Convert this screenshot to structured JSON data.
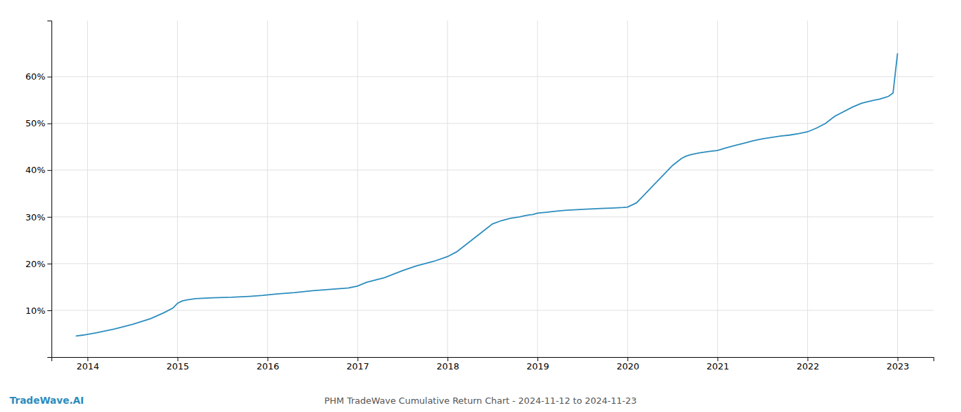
{
  "chart_data": {
    "type": "line",
    "title": "PHM TradeWave Cumulative Return Chart - 2024-11-12 to 2024-11-23",
    "annotations": [
      {
        "text": "TradeWave.AI",
        "color": "#2b8cbe"
      }
    ],
    "x": [
      2013.87,
      2013.95,
      2014.1,
      2014.3,
      2014.5,
      2014.7,
      2014.85,
      2014.95,
      2015.0,
      2015.05,
      2015.1,
      2015.2,
      2015.4,
      2015.6,
      2015.8,
      2015.95,
      2016.1,
      2016.3,
      2016.5,
      2016.7,
      2016.9,
      2017.0,
      2017.1,
      2017.3,
      2017.5,
      2017.65,
      2017.75,
      2017.85,
      2018.0,
      2018.1,
      2018.2,
      2018.3,
      2018.4,
      2018.5,
      2018.6,
      2018.7,
      2018.8,
      2018.85,
      2018.9,
      2018.95,
      2019.0,
      2019.1,
      2019.2,
      2019.3,
      2019.5,
      2019.7,
      2019.85,
      2019.95,
      2020.0,
      2020.1,
      2020.2,
      2020.3,
      2020.4,
      2020.5,
      2020.6,
      2020.65,
      2020.7,
      2020.75,
      2020.8,
      2020.9,
      2021.0,
      2021.1,
      2021.2,
      2021.3,
      2021.4,
      2021.5,
      2021.6,
      2021.7,
      2021.8,
      2021.9,
      2022.0,
      2022.1,
      2022.2,
      2022.3,
      2022.5,
      2022.6,
      2022.7,
      2022.8,
      2022.85,
      2022.9,
      2022.95,
      2023.0
    ],
    "values": [
      4.5,
      4.7,
      5.2,
      6.0,
      7.0,
      8.2,
      9.5,
      10.5,
      11.5,
      12.0,
      12.2,
      12.5,
      12.7,
      12.8,
      13.0,
      13.2,
      13.5,
      13.8,
      14.2,
      14.5,
      14.8,
      15.2,
      16.0,
      17.0,
      18.5,
      19.5,
      20.0,
      20.5,
      21.5,
      22.5,
      24.0,
      25.5,
      27.0,
      28.5,
      29.2,
      29.7,
      30.0,
      30.2,
      30.4,
      30.5,
      30.8,
      31.0,
      31.2,
      31.4,
      31.6,
      31.8,
      31.9,
      32.0,
      32.1,
      33.0,
      35.0,
      37.0,
      39.0,
      41.0,
      42.5,
      43.0,
      43.3,
      43.5,
      43.7,
      44.0,
      44.2,
      44.8,
      45.3,
      45.8,
      46.3,
      46.7,
      47.0,
      47.3,
      47.5,
      47.8,
      48.2,
      49.0,
      50.0,
      51.5,
      53.5,
      54.3,
      54.8,
      55.2,
      55.5,
      55.8,
      56.5,
      65.0
    ],
    "color": "#2b8cbe",
    "xlim": [
      2013.6,
      2023.4
    ],
    "ylim": [
      0,
      72
    ],
    "xticks": [
      2014,
      2015,
      2016,
      2017,
      2018,
      2019,
      2020,
      2021,
      2022,
      2023
    ],
    "yticks": [
      {
        "value": 10,
        "label": "10%"
      },
      {
        "value": 20,
        "label": "20%"
      },
      {
        "value": 30,
        "label": "30%"
      },
      {
        "value": 40,
        "label": "40%"
      },
      {
        "value": 50,
        "label": "50%"
      },
      {
        "value": 60,
        "label": "60%"
      }
    ],
    "grid": true
  }
}
